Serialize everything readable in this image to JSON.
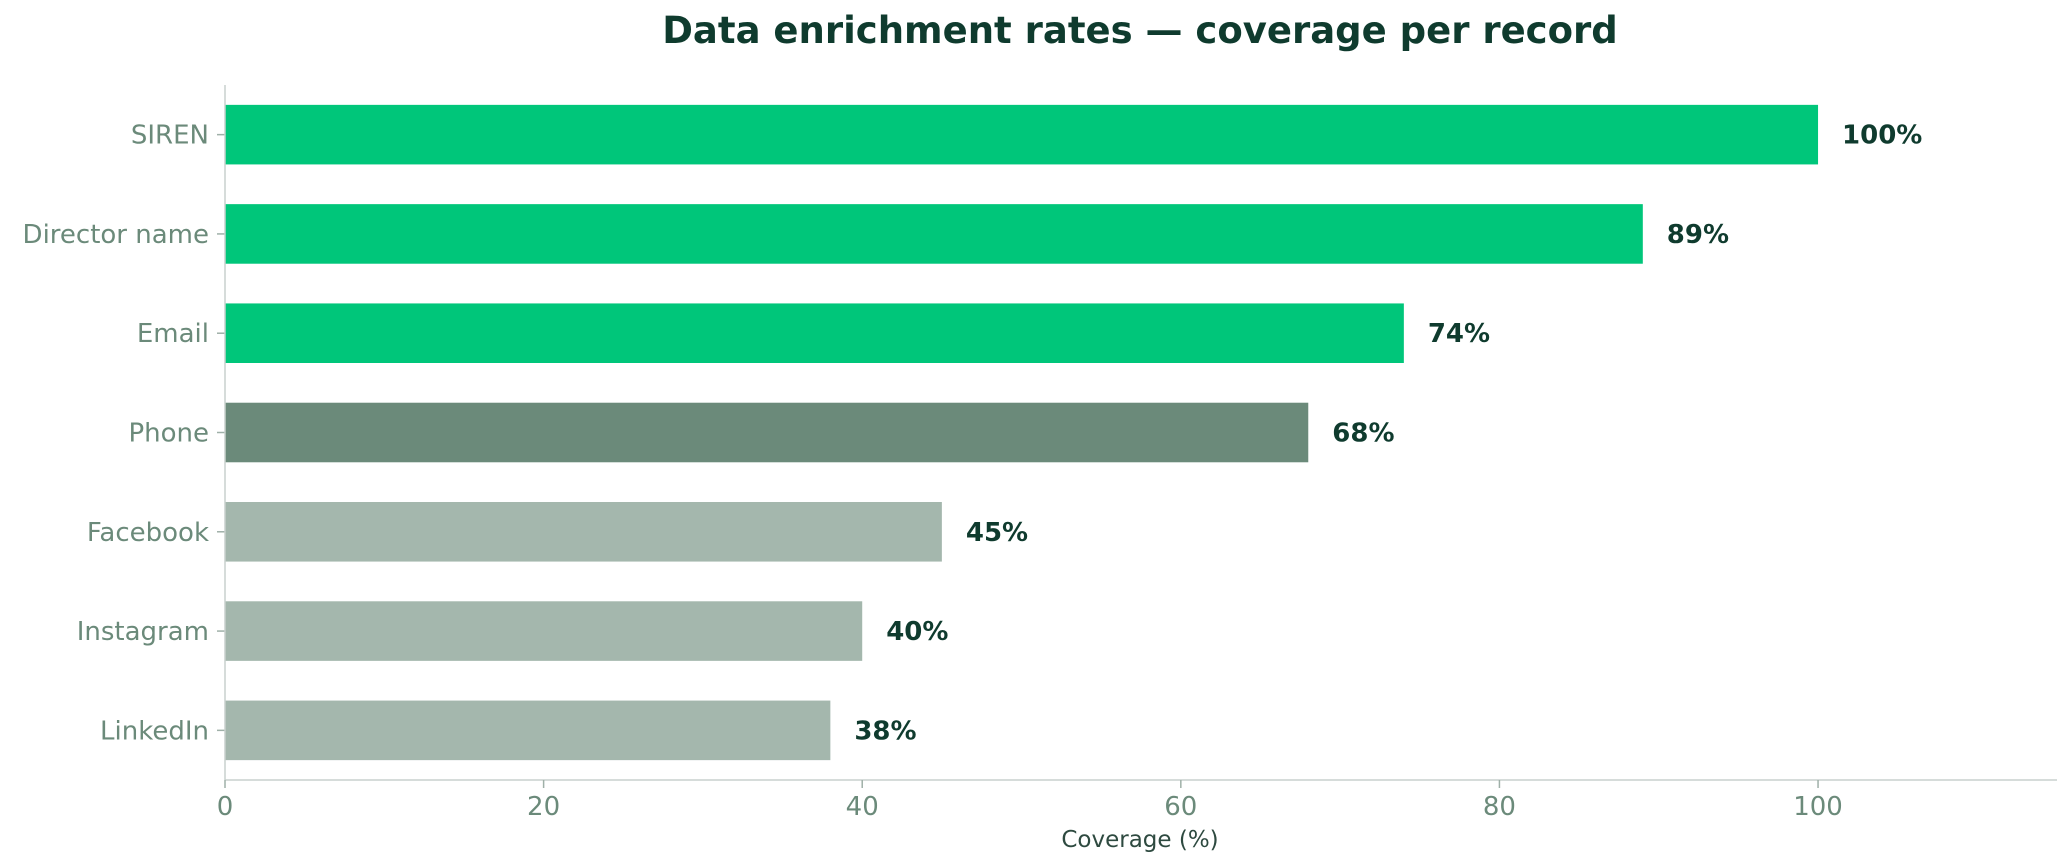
{
  "chart_data": {
    "type": "bar",
    "orientation": "horizontal",
    "title": "Data enrichment rates — coverage per record",
    "xlabel": "Coverage (%)",
    "ylabel": "",
    "xlim": [
      0,
      115
    ],
    "xticks": [
      0,
      20,
      40,
      60,
      80,
      100
    ],
    "grid": false,
    "legend": "none",
    "categories": [
      "SIREN",
      "Director name",
      "Email",
      "Phone",
      "Facebook",
      "Instagram",
      "LinkedIn"
    ],
    "values": [
      100,
      89,
      74,
      68,
      45,
      40,
      38
    ],
    "value_labels": [
      "100%",
      "89%",
      "74%",
      "68%",
      "45%",
      "40%",
      "38%"
    ],
    "bar_colors": [
      "#00c67a",
      "#00c67a",
      "#00c67a",
      "#6b8a7a",
      "#a4b7ad",
      "#a4b7ad",
      "#a4b7ad"
    ]
  }
}
